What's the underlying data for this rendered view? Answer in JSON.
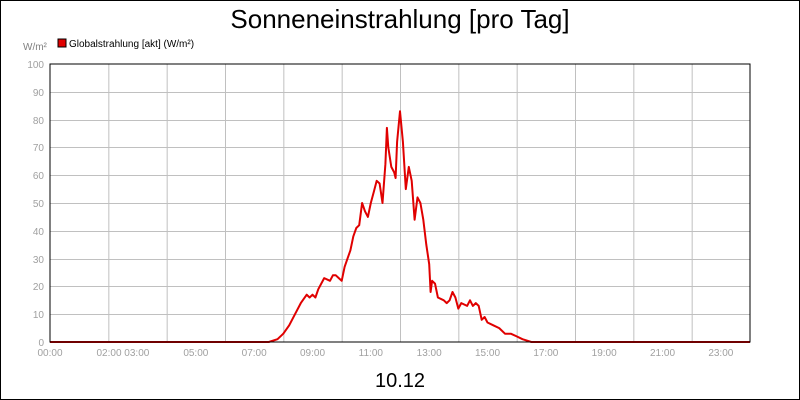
{
  "chart_data": {
    "type": "line",
    "title": "Sonneneinstrahlung [pro Tag]",
    "ylabel": "W/m²",
    "xlabel": "10.12",
    "ylim": [
      0,
      100
    ],
    "xlim": [
      0,
      24
    ],
    "y_ticks": [
      "0",
      "10",
      "20",
      "30",
      "40",
      "50",
      "60",
      "70",
      "80",
      "90",
      "100"
    ],
    "x_tick_labels": [
      {
        "hour": 0,
        "label": "00:00"
      },
      {
        "hour": 2.5,
        "label": "02:00 03:00"
      },
      {
        "hour": 5,
        "label": "05:00"
      },
      {
        "hour": 7,
        "label": "07:00"
      },
      {
        "hour": 9,
        "label": "09:00"
      },
      {
        "hour": 11,
        "label": "11:00"
      },
      {
        "hour": 13,
        "label": "13:00"
      },
      {
        "hour": 15,
        "label": "15:00"
      },
      {
        "hour": 17,
        "label": "17:00"
      },
      {
        "hour": 19,
        "label": "19:00"
      },
      {
        "hour": 21,
        "label": "21:00"
      },
      {
        "hour": 23,
        "label": "23:00"
      }
    ],
    "grid": true,
    "legend_position": "top-left",
    "series": [
      {
        "name": "Globalstrahlung [akt] (W/m²)",
        "color": "#e00000",
        "points": [
          [
            0,
            0
          ],
          [
            7.5,
            0
          ],
          [
            7.8,
            1
          ],
          [
            8.0,
            3
          ],
          [
            8.2,
            6
          ],
          [
            8.4,
            10
          ],
          [
            8.6,
            14
          ],
          [
            8.8,
            17
          ],
          [
            8.9,
            16
          ],
          [
            9.0,
            17
          ],
          [
            9.1,
            16
          ],
          [
            9.2,
            19
          ],
          [
            9.4,
            23
          ],
          [
            9.6,
            22
          ],
          [
            9.7,
            24
          ],
          [
            9.8,
            24
          ],
          [
            9.9,
            23
          ],
          [
            10.0,
            22
          ],
          [
            10.1,
            27
          ],
          [
            10.2,
            30
          ],
          [
            10.3,
            33
          ],
          [
            10.4,
            38
          ],
          [
            10.5,
            41
          ],
          [
            10.6,
            42
          ],
          [
            10.7,
            50
          ],
          [
            10.8,
            47
          ],
          [
            10.9,
            45
          ],
          [
            11.0,
            50
          ],
          [
            11.1,
            54
          ],
          [
            11.2,
            58
          ],
          [
            11.3,
            57
          ],
          [
            11.4,
            50
          ],
          [
            11.5,
            64
          ],
          [
            11.55,
            77
          ],
          [
            11.6,
            70
          ],
          [
            11.7,
            63
          ],
          [
            11.8,
            61
          ],
          [
            11.85,
            59
          ],
          [
            11.9,
            72
          ],
          [
            12.0,
            83
          ],
          [
            12.1,
            72
          ],
          [
            12.2,
            55
          ],
          [
            12.3,
            63
          ],
          [
            12.4,
            58
          ],
          [
            12.5,
            44
          ],
          [
            12.6,
            52
          ],
          [
            12.7,
            50
          ],
          [
            12.8,
            44
          ],
          [
            12.9,
            35
          ],
          [
            13.0,
            28
          ],
          [
            13.05,
            18
          ],
          [
            13.1,
            22
          ],
          [
            13.2,
            21
          ],
          [
            13.3,
            16
          ],
          [
            13.5,
            15
          ],
          [
            13.6,
            14
          ],
          [
            13.7,
            15
          ],
          [
            13.8,
            18
          ],
          [
            13.9,
            16
          ],
          [
            14.0,
            12
          ],
          [
            14.1,
            14
          ],
          [
            14.3,
            13
          ],
          [
            14.4,
            15
          ],
          [
            14.5,
            13
          ],
          [
            14.6,
            14
          ],
          [
            14.7,
            13
          ],
          [
            14.8,
            8
          ],
          [
            14.9,
            9
          ],
          [
            15.0,
            7
          ],
          [
            15.2,
            6
          ],
          [
            15.4,
            5
          ],
          [
            15.6,
            3
          ],
          [
            15.8,
            3
          ],
          [
            16.0,
            2
          ],
          [
            16.2,
            1
          ],
          [
            16.5,
            0
          ],
          [
            24,
            0
          ]
        ]
      }
    ]
  }
}
